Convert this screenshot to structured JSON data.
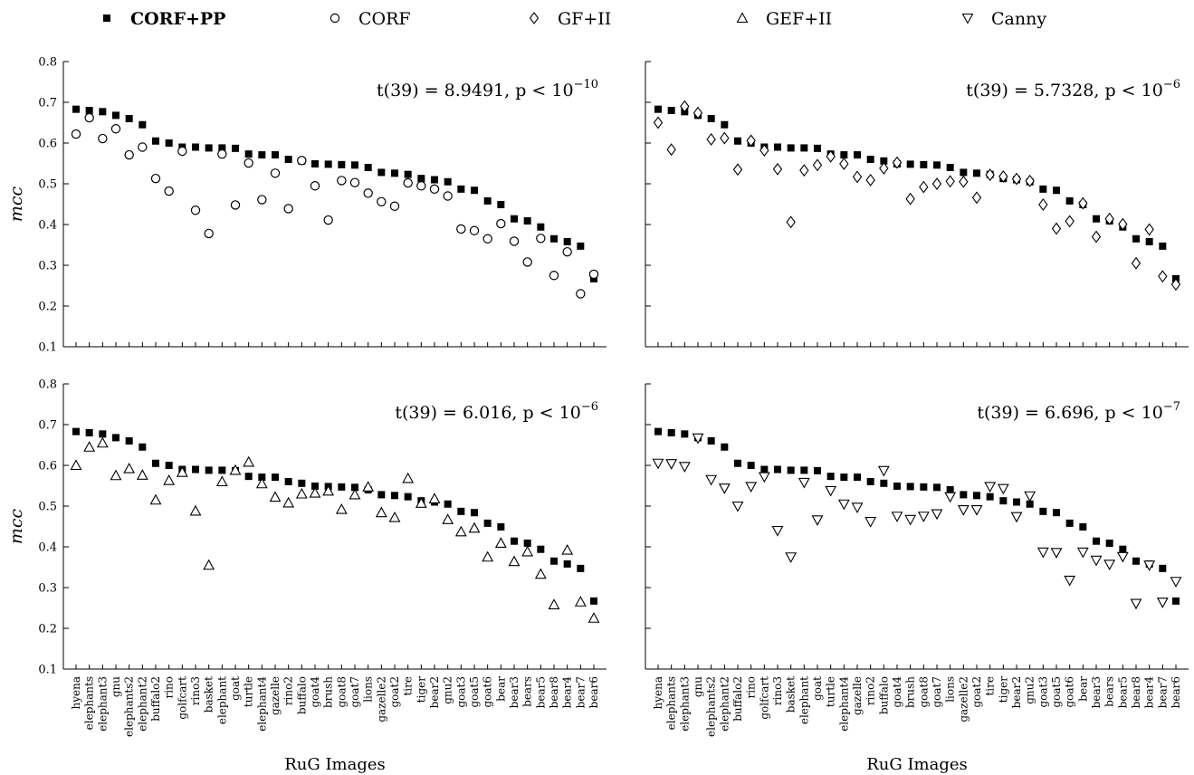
{
  "legend": [
    {
      "name": "CORF+PP",
      "marker": "square",
      "bold": true
    },
    {
      "name": "CORF",
      "marker": "circle",
      "bold": false
    },
    {
      "name": "GF+II",
      "marker": "diamond",
      "bold": false
    },
    {
      "name": "GEF+II",
      "marker": "triangle-up",
      "bold": false
    },
    {
      "name": "Canny",
      "marker": "triangle-down",
      "bold": false
    }
  ],
  "chart_data": [
    {
      "type": "scatter",
      "ylabel": "mcc",
      "xlabel": "",
      "ylim": [
        0.1,
        0.8
      ],
      "yticks": [
        "0.1",
        "0.2",
        "0.3",
        "0.4",
        "0.5",
        "0.6",
        "0.7",
        "0.8"
      ],
      "annotation": {
        "stat": "t(39) = 8.9491, p < 10",
        "exp": "−10"
      },
      "categories": [
        "hyena",
        "elephants",
        "elephant3",
        "gnu",
        "elephants2",
        "elephant2",
        "buffalo2",
        "rino",
        "golfcart",
        "rino3",
        "basket",
        "elephant",
        "goat",
        "turtle",
        "elephant4",
        "gazelle",
        "rino2",
        "buffalo",
        "goat4",
        "brush",
        "goat8",
        "goat7",
        "lions",
        "gazelle2",
        "goat2",
        "tire",
        "tiger",
        "bear2",
        "gnu2",
        "goat3",
        "goat5",
        "goat6",
        "bear",
        "bear3",
        "bears",
        "bear5",
        "bear8",
        "bear4",
        "bear7",
        "bear6"
      ],
      "series": [
        {
          "name": "CORF+PP",
          "marker": "square",
          "values": [
            0.683,
            0.68,
            0.677,
            0.668,
            0.66,
            0.645,
            0.605,
            0.6,
            0.59,
            0.59,
            0.588,
            0.588,
            0.587,
            0.573,
            0.571,
            0.571,
            0.56,
            0.556,
            0.549,
            0.548,
            0.547,
            0.546,
            0.54,
            0.528,
            0.526,
            0.523,
            0.513,
            0.51,
            0.505,
            0.487,
            0.484,
            0.458,
            0.449,
            0.414,
            0.409,
            0.394,
            0.365,
            0.358,
            0.347,
            0.267
          ]
        },
        {
          "name": "CORF",
          "marker": "circle",
          "values": [
            0.622,
            0.662,
            0.611,
            0.635,
            0.571,
            0.59,
            0.513,
            0.482,
            0.58,
            0.435,
            0.378,
            0.573,
            0.448,
            0.551,
            0.461,
            0.526,
            0.439,
            0.557,
            0.495,
            0.411,
            0.508,
            0.503,
            0.477,
            0.456,
            0.445,
            0.502,
            0.495,
            0.487,
            0.47,
            0.389,
            0.385,
            0.365,
            0.402,
            0.359,
            0.308,
            0.366,
            0.275,
            0.333,
            0.23,
            0.278
          ]
        }
      ]
    },
    {
      "type": "scatter",
      "ylabel": "",
      "xlabel": "",
      "ylim": [
        0.1,
        0.8
      ],
      "yticks": [],
      "annotation": {
        "stat": "t(39) = 5.7328, p < 10",
        "exp": "−6"
      },
      "categories": [
        "hyena",
        "elephants",
        "elephant3",
        "gnu",
        "elephants2",
        "elephant2",
        "buffalo2",
        "rino",
        "golfcart",
        "rino3",
        "basket",
        "elephant",
        "goat",
        "turtle",
        "elephant4",
        "gazelle",
        "rino2",
        "buffalo",
        "goat4",
        "brush",
        "goat8",
        "goat7",
        "lions",
        "gazelle2",
        "goat2",
        "tire",
        "tiger",
        "bear2",
        "gnu2",
        "goat3",
        "goat5",
        "goat6",
        "bear",
        "bear3",
        "bears",
        "bear5",
        "bear8",
        "bear4",
        "bear7",
        "bear6"
      ],
      "series": [
        {
          "name": "CORF+PP",
          "marker": "square",
          "values": [
            0.683,
            0.68,
            0.677,
            0.668,
            0.66,
            0.645,
            0.605,
            0.6,
            0.59,
            0.59,
            0.588,
            0.588,
            0.587,
            0.573,
            0.571,
            0.571,
            0.56,
            0.556,
            0.549,
            0.548,
            0.547,
            0.546,
            0.54,
            0.528,
            0.526,
            0.523,
            0.513,
            0.51,
            0.505,
            0.487,
            0.484,
            0.458,
            0.449,
            0.414,
            0.409,
            0.394,
            0.365,
            0.358,
            0.347,
            0.267
          ]
        },
        {
          "name": "GF+II",
          "marker": "diamond",
          "values": [
            0.65,
            0.584,
            0.69,
            0.674,
            0.609,
            0.612,
            0.535,
            0.606,
            0.582,
            0.536,
            0.406,
            0.533,
            0.546,
            0.567,
            0.549,
            0.517,
            0.509,
            0.538,
            0.552,
            0.463,
            0.492,
            0.5,
            0.506,
            0.505,
            0.466,
            0.522,
            0.518,
            0.512,
            0.507,
            0.449,
            0.39,
            0.408,
            0.452,
            0.37,
            0.414,
            0.401,
            0.305,
            0.388,
            0.273,
            0.253
          ]
        }
      ]
    },
    {
      "type": "scatter",
      "ylabel": "mcc",
      "xlabel": "RuG Images",
      "ylim": [
        0.1,
        0.8
      ],
      "yticks": [
        "0.1",
        "0.2",
        "0.3",
        "0.4",
        "0.5",
        "0.6",
        "0.7",
        "0.8"
      ],
      "annotation": {
        "stat": "t(39) = 6.016, p < 10",
        "exp": "−6"
      },
      "categories": [
        "hyena",
        "elephants",
        "elephant3",
        "gnu",
        "elephants2",
        "elephant2",
        "buffalo2",
        "rino",
        "golfcart",
        "rino3",
        "basket",
        "elephant",
        "goat",
        "turtle",
        "elephant4",
        "gazelle",
        "rino2",
        "buffalo",
        "goat4",
        "brush",
        "goat8",
        "goat7",
        "lions",
        "gazelle2",
        "goat2",
        "tire",
        "tiger",
        "bear2",
        "gnu2",
        "goat3",
        "goat5",
        "goat6",
        "bear",
        "bear3",
        "bears",
        "bear5",
        "bear8",
        "bear4",
        "bear7",
        "bear6"
      ],
      "series": [
        {
          "name": "CORF+PP",
          "marker": "square",
          "values": [
            0.683,
            0.68,
            0.677,
            0.668,
            0.66,
            0.645,
            0.605,
            0.6,
            0.59,
            0.59,
            0.588,
            0.588,
            0.587,
            0.573,
            0.571,
            0.571,
            0.56,
            0.556,
            0.549,
            0.548,
            0.547,
            0.546,
            0.54,
            0.528,
            0.526,
            0.523,
            0.513,
            0.51,
            0.505,
            0.487,
            0.484,
            0.458,
            0.449,
            0.414,
            0.409,
            0.394,
            0.365,
            0.358,
            0.347,
            0.267
          ]
        },
        {
          "name": "GEF+II",
          "marker": "triangle-up",
          "values": [
            0.6,
            0.645,
            0.655,
            0.575,
            0.592,
            0.576,
            0.515,
            0.563,
            0.583,
            0.488,
            0.355,
            0.56,
            0.588,
            0.608,
            0.555,
            0.522,
            0.508,
            0.53,
            0.532,
            0.537,
            0.492,
            0.528,
            0.547,
            0.484,
            0.472,
            0.568,
            0.507,
            0.518,
            0.467,
            0.437,
            0.446,
            0.375,
            0.409,
            0.364,
            0.388,
            0.333,
            0.258,
            0.392,
            0.265,
            0.225
          ]
        }
      ]
    },
    {
      "type": "scatter",
      "ylabel": "",
      "xlabel": "RuG Images",
      "ylim": [
        0.1,
        0.8
      ],
      "yticks": [],
      "annotation": {
        "stat": "t(39) = 6.696, p < 10",
        "exp": "−7"
      },
      "categories": [
        "hyena",
        "elephants",
        "elephant3",
        "gnu",
        "elephants2",
        "elephant2",
        "buffalo2",
        "rino",
        "golfcart",
        "rino3",
        "basket",
        "elephant",
        "goat",
        "turtle",
        "elephant4",
        "gazelle",
        "rino2",
        "buffalo",
        "goat4",
        "brush",
        "goat8",
        "goat7",
        "lions",
        "gazelle2",
        "goat2",
        "tire",
        "tiger",
        "bear2",
        "gnu2",
        "goat3",
        "goat5",
        "goat6",
        "bear",
        "bear3",
        "bears",
        "bear5",
        "bear8",
        "bear4",
        "bear7",
        "bear6"
      ],
      "series": [
        {
          "name": "CORF+PP",
          "marker": "square",
          "values": [
            0.683,
            0.68,
            0.677,
            0.668,
            0.66,
            0.645,
            0.605,
            0.6,
            0.59,
            0.59,
            0.588,
            0.588,
            0.587,
            0.573,
            0.571,
            0.571,
            0.56,
            0.556,
            0.549,
            0.548,
            0.547,
            0.546,
            0.54,
            0.528,
            0.526,
            0.523,
            0.513,
            0.51,
            0.505,
            0.487,
            0.484,
            0.458,
            0.449,
            0.414,
            0.409,
            0.394,
            0.365,
            0.358,
            0.347,
            0.267
          ]
        },
        {
          "name": "Canny",
          "marker": "triangle-down",
          "values": [
            0.605,
            0.604,
            0.597,
            0.667,
            0.565,
            0.544,
            0.5,
            0.548,
            0.572,
            0.44,
            0.375,
            0.558,
            0.466,
            0.538,
            0.505,
            0.497,
            0.462,
            0.587,
            0.475,
            0.467,
            0.475,
            0.481,
            0.523,
            0.491,
            0.491,
            0.548,
            0.543,
            0.474,
            0.525,
            0.387,
            0.386,
            0.318,
            0.387,
            0.367,
            0.357,
            0.376,
            0.261,
            0.355,
            0.264,
            0.315
          ]
        }
      ]
    }
  ]
}
